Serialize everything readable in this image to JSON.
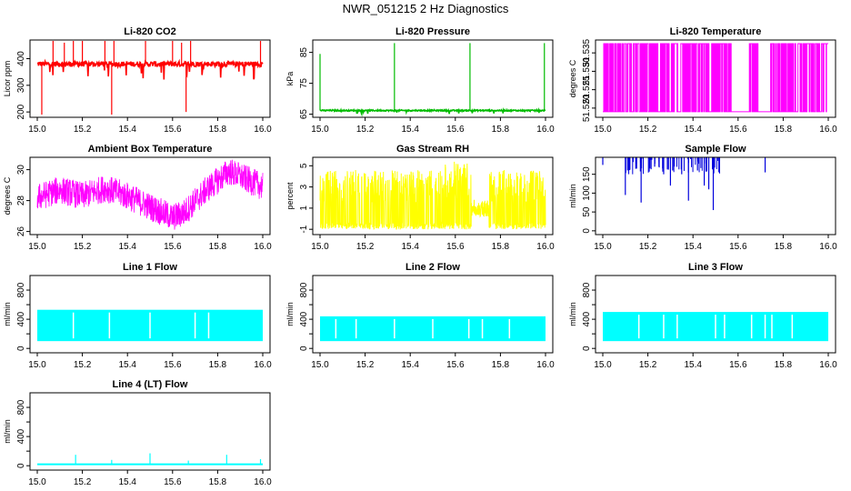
{
  "figure_title": "NWR_051215  2 Hz Diagnostics",
  "chart_data": [
    {
      "type": "line",
      "title": "Li-820 CO2",
      "ylabel": "Licor ppm",
      "xlim": [
        15.0,
        16.0
      ],
      "ylim": [
        180,
        470
      ],
      "x_ticks": [
        15.0,
        15.2,
        15.4,
        15.6,
        15.8,
        16.0
      ],
      "y_ticks": [
        200,
        300,
        400
      ],
      "color": "#ff0000",
      "series": [
        {
          "name": "CO2",
          "baseline": 380,
          "noise": 10,
          "spikes": [
            [
              15.02,
              190
            ],
            [
              15.07,
              470
            ],
            [
              15.12,
              460
            ],
            [
              15.16,
              470
            ],
            [
              15.2,
              470
            ],
            [
              15.3,
              470
            ],
            [
              15.33,
              190
            ],
            [
              15.34,
              470
            ],
            [
              15.48,
              470
            ],
            [
              15.6,
              470
            ],
            [
              15.64,
              460
            ],
            [
              15.66,
              200
            ],
            [
              15.68,
              470
            ],
            [
              15.99,
              470
            ]
          ]
        }
      ]
    },
    {
      "type": "line",
      "title": "Li-820 Pressure",
      "ylabel": "kPa",
      "xlim": [
        15.0,
        16.0
      ],
      "ylim": [
        64,
        89
      ],
      "x_ticks": [
        15.0,
        15.2,
        15.4,
        15.6,
        15.8,
        16.0
      ],
      "y_ticks": [
        65,
        75,
        85
      ],
      "color": "#00bb00",
      "series": [
        {
          "name": "Pressure",
          "baseline": 66.2,
          "noise": 0.2,
          "spikes": [
            [
              15.0,
              84.5
            ],
            [
              15.33,
              88
            ],
            [
              15.665,
              88
            ],
            [
              15.995,
              88
            ]
          ]
        }
      ]
    },
    {
      "type": "line",
      "title": "Li-820 Temperature",
      "ylabel": "degrees C",
      "xlim": [
        15.0,
        16.0
      ],
      "ylim": [
        51.5175,
        51.5385
      ],
      "x_ticks": [
        15.0,
        15.2,
        15.4,
        15.6,
        15.8,
        16.0
      ],
      "y_ticks": [
        51.52,
        51.525,
        51.53,
        51.535
      ],
      "y_tick_labels": [
        "51.520",
        "51.525",
        "51.530",
        "51.535"
      ],
      "color": "#ff00ff",
      "series": [
        {
          "name": "Temperature",
          "levels": [
            51.519,
            51.5375
          ],
          "gaps": [
            [
              15.57,
              15.65
            ],
            [
              15.69,
              15.73
            ]
          ]
        }
      ]
    },
    {
      "type": "line",
      "title": "Ambient Box Temperature",
      "ylabel": "degrees C",
      "xlim": [
        15.0,
        16.0
      ],
      "ylim": [
        25.8,
        30.8
      ],
      "x_ticks": [
        15.0,
        15.2,
        15.4,
        15.6,
        15.8,
        16.0
      ],
      "y_ticks": [
        26,
        28,
        30
      ],
      "color": "#ff00ff",
      "series": [
        {
          "name": "BoxTemp",
          "profile": [
            [
              15.0,
              28.2
            ],
            [
              15.1,
              28.7
            ],
            [
              15.2,
              28.3
            ],
            [
              15.3,
              28.8
            ],
            [
              15.4,
              28.3
            ],
            [
              15.5,
              27.6
            ],
            [
              15.6,
              26.9
            ],
            [
              15.65,
              27.2
            ],
            [
              15.75,
              28.7
            ],
            [
              15.85,
              29.9
            ],
            [
              16.0,
              28.9
            ]
          ],
          "noise": 0.9
        }
      ]
    },
    {
      "type": "line",
      "title": "Gas Stream RH",
      "ylabel": "percent",
      "xlim": [
        15.0,
        16.0
      ],
      "ylim": [
        -1.5,
        5.8
      ],
      "x_ticks": [
        15.0,
        15.2,
        15.4,
        15.6,
        15.8,
        16.0
      ],
      "y_ticks": [
        -1,
        1,
        3,
        5
      ],
      "color": "#ffff00",
      "series": [
        {
          "name": "RH",
          "low": -1,
          "high": 4.6,
          "dip": [
            15.67,
            15.75
          ]
        }
      ]
    },
    {
      "type": "line",
      "title": "Sample Flow",
      "ylabel": "ml/min",
      "xlim": [
        15.0,
        16.0
      ],
      "ylim": [
        -10,
        195
      ],
      "x_ticks": [
        15.0,
        15.2,
        15.4,
        15.6,
        15.8,
        16.0
      ],
      "y_ticks": [
        0,
        50,
        100,
        150
      ],
      "color": "#0000dd",
      "series": [
        {
          "name": "SampleFlow",
          "top": 195,
          "drops": [
            [
              15.0,
              175
            ],
            [
              15.1,
              95
            ],
            [
              15.11,
              160
            ],
            [
              15.15,
              165
            ],
            [
              15.17,
              75
            ],
            [
              15.23,
              170
            ],
            [
              15.27,
              150
            ],
            [
              15.3,
              120
            ],
            [
              15.31,
              160
            ],
            [
              15.35,
              150
            ],
            [
              15.38,
              80
            ],
            [
              15.42,
              160
            ],
            [
              15.45,
              120
            ],
            [
              15.47,
              110
            ],
            [
              15.49,
              55
            ],
            [
              15.72,
              155
            ]
          ]
        }
      ]
    },
    {
      "type": "line",
      "title": "Line 1 Flow",
      "ylabel": "ml/min",
      "xlim": [
        15.0,
        16.0
      ],
      "ylim": [
        -60,
        1000
      ],
      "x_ticks": [
        15.0,
        15.2,
        15.4,
        15.6,
        15.8,
        16.0
      ],
      "y_ticks": [
        0,
        400,
        800
      ],
      "y_extra_ticks": [
        200,
        600
      ],
      "color": "#00ffff",
      "series": [
        {
          "name": "Line1",
          "low": 100,
          "high": 530,
          "gaps": [
            15.16,
            15.32,
            15.5,
            15.7,
            15.76
          ]
        }
      ]
    },
    {
      "type": "line",
      "title": "Line 2 Flow",
      "ylabel": "ml/min",
      "xlim": [
        15.0,
        16.0
      ],
      "ylim": [
        -60,
        1000
      ],
      "x_ticks": [
        15.0,
        15.2,
        15.4,
        15.6,
        15.8,
        16.0
      ],
      "y_ticks": [
        0,
        400,
        800
      ],
      "y_extra_ticks": [
        200,
        600
      ],
      "color": "#00ffff",
      "series": [
        {
          "name": "Line2",
          "low": 100,
          "high": 440,
          "gaps": [
            15.07,
            15.16,
            15.33,
            15.5,
            15.66,
            15.72,
            15.84
          ]
        }
      ]
    },
    {
      "type": "line",
      "title": "Line 3 Flow",
      "ylabel": "ml/min",
      "xlim": [
        15.0,
        16.0
      ],
      "ylim": [
        -60,
        1000
      ],
      "x_ticks": [
        15.0,
        15.2,
        15.4,
        15.6,
        15.8,
        16.0
      ],
      "y_ticks": [
        0,
        400,
        800
      ],
      "y_extra_ticks": [
        200,
        600
      ],
      "color": "#00ffff",
      "series": [
        {
          "name": "Line3",
          "low": 100,
          "high": 500,
          "gaps": [
            15.16,
            15.27,
            15.33,
            15.5,
            15.54,
            15.66,
            15.72,
            15.75,
            15.84
          ]
        }
      ]
    },
    {
      "type": "line",
      "title": "Line 4 (LT) Flow",
      "ylabel": "ml/min",
      "xlim": [
        15.0,
        16.0
      ],
      "ylim": [
        -60,
        1000
      ],
      "x_ticks": [
        15.0,
        15.2,
        15.4,
        15.6,
        15.8,
        16.0
      ],
      "y_ticks": [
        0,
        400,
        800
      ],
      "y_extra_ticks": [
        200,
        600
      ],
      "color": "#00ffff",
      "series": [
        {
          "name": "Line4",
          "baseline": 20,
          "spikes": [
            [
              15.17,
              150
            ],
            [
              15.33,
              80
            ],
            [
              15.5,
              170
            ],
            [
              15.67,
              70
            ],
            [
              15.84,
              150
            ],
            [
              15.99,
              90
            ]
          ]
        }
      ]
    }
  ]
}
